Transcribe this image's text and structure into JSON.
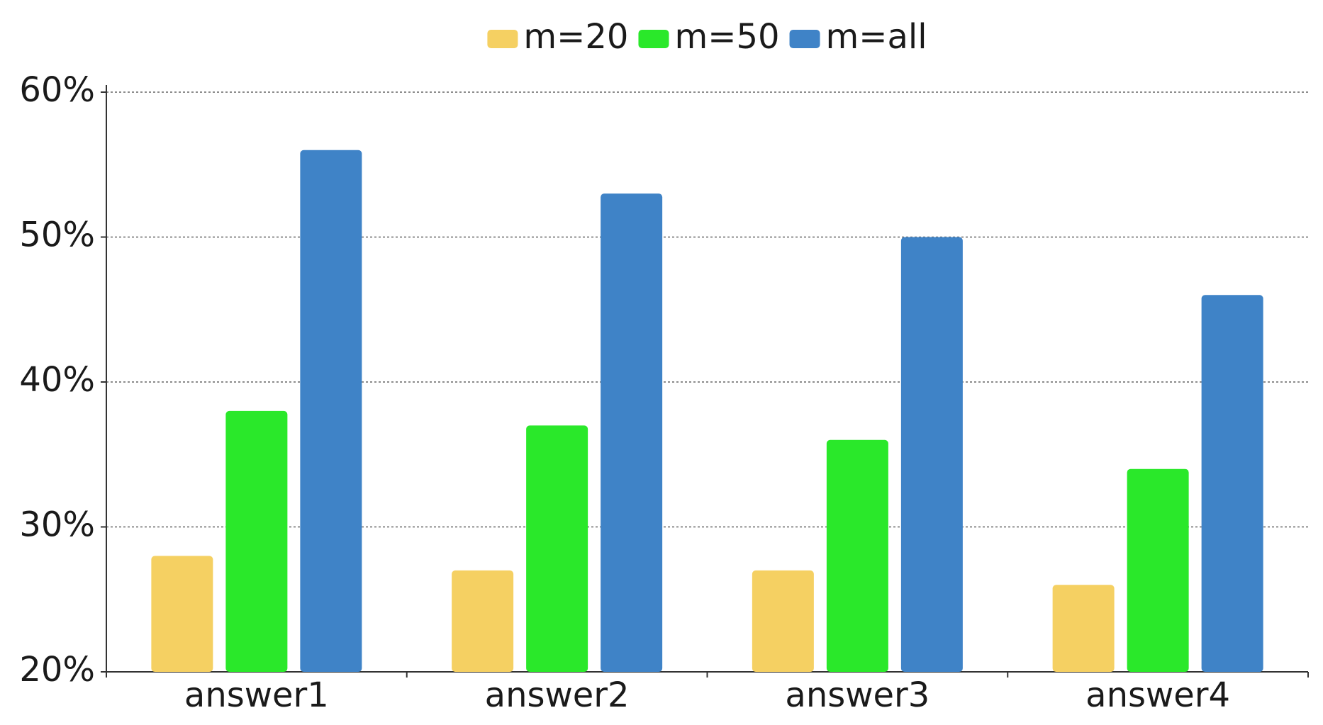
{
  "chart_data": {
    "type": "bar",
    "categories": [
      "answer1",
      "answer2",
      "answer3",
      "answer4"
    ],
    "series": [
      {
        "name": "m=20",
        "color": "#f5d062",
        "values": [
          28,
          27,
          27,
          26
        ]
      },
      {
        "name": "m=50",
        "color": "#2ae82a",
        "values": [
          38,
          37,
          36,
          34
        ]
      },
      {
        "name": "m=all",
        "color": "#3f83c7",
        "values": [
          56,
          53,
          50,
          46
        ]
      }
    ],
    "ylim": [
      20,
      60
    ],
    "yticks": [
      {
        "value": 20,
        "label": "20%"
      },
      {
        "value": 30,
        "label": "30%"
      },
      {
        "value": 40,
        "label": "40%"
      },
      {
        "value": 50,
        "label": "50%"
      },
      {
        "value": 60,
        "label": "60%"
      }
    ],
    "grid": true,
    "legend_position": "top"
  }
}
